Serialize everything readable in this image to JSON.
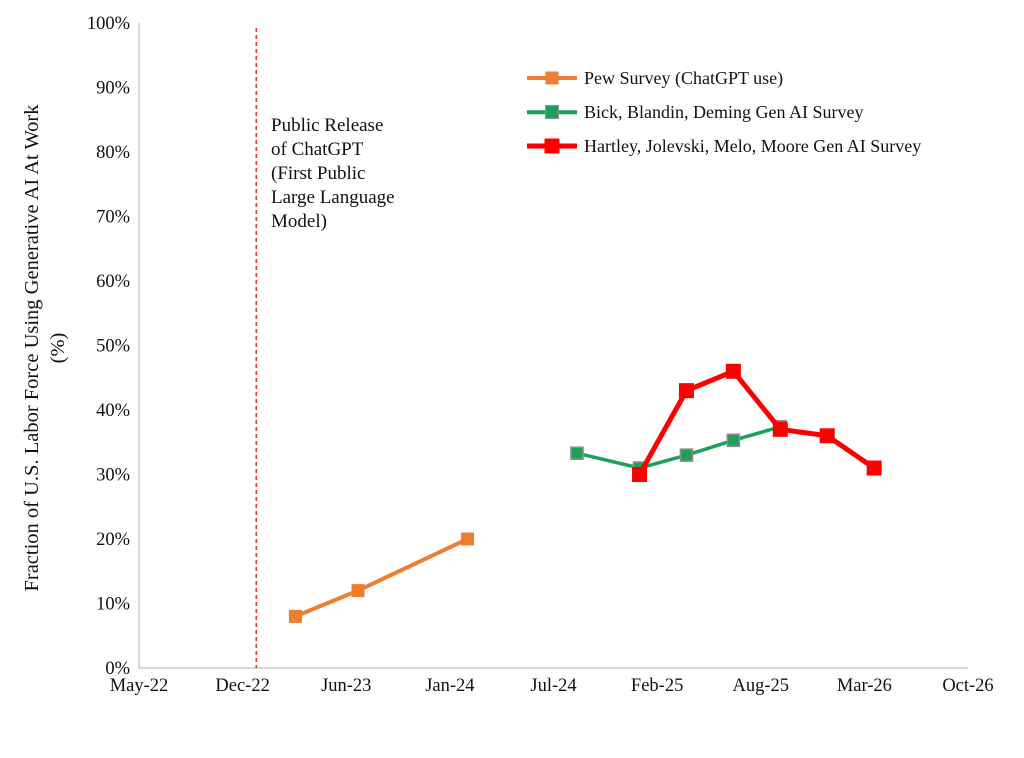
{
  "chart_data": {
    "type": "line",
    "title": "",
    "y_axis_title_line1": "Fraction of U.S. Labor Force Using Generative AI At Work",
    "y_axis_title_line2": "(%)",
    "xlabel": "",
    "x_unit": "month-year",
    "x_tick_labels": [
      "May-22",
      "Dec-22",
      "Jun-23",
      "Jan-24",
      "Jul-24",
      "Feb-25",
      "Aug-25",
      "Mar-26",
      "Oct-26"
    ],
    "y_tick_labels": [
      "0%",
      "10%",
      "20%",
      "30%",
      "40%",
      "50%",
      "60%",
      "70%",
      "80%",
      "90%",
      "100%"
    ],
    "ylim": [
      0,
      100
    ],
    "y_tick_step": 10,
    "x_range": [
      "May-22",
      "Oct-26"
    ],
    "months_total": 53,
    "grid": false,
    "legend_position": "upper center-right, no border",
    "annotation": {
      "text": "Public Release\nof ChatGPT\n(First Public\nLarge Language\nModel)",
      "event_month": "Dec-22"
    },
    "reference_line": {
      "label": "ChatGPT public release",
      "month": "Dec-22",
      "month_index": 7.5,
      "style": "dashed",
      "color": "#E3352B"
    },
    "axis_color": "#BFBFBF",
    "series": [
      {
        "name": "Pew Survey (ChatGPT use)",
        "color": "#ED7D31",
        "marker": "square",
        "points": [
          {
            "date": "Mar-23",
            "month_index": 10,
            "value": 8
          },
          {
            "date": "Jul-23",
            "month_index": 14,
            "value": 12
          },
          {
            "date": "Feb-24",
            "month_index": 21,
            "value": 20
          }
        ]
      },
      {
        "name": "Bick, Blandin, Deming Gen AI Survey",
        "color": "#1CA05A",
        "marker": "square",
        "marker_border": "#8F8F8F",
        "points": [
          {
            "date": "Sep-24",
            "month_index": 28,
            "value": 33.3
          },
          {
            "date": "Jan-25",
            "month_index": 32,
            "value": 31
          },
          {
            "date": "Apr-25",
            "month_index": 35,
            "value": 33
          },
          {
            "date": "Jul-25",
            "month_index": 38,
            "value": 35.3
          },
          {
            "date": "Oct-25",
            "month_index": 41,
            "value": 37.4
          }
        ]
      },
      {
        "name": "Hartley, Jolevski, Melo, Moore Gen AI Survey",
        "color": "#FB0000",
        "marker": "square",
        "points": [
          {
            "date": "Jan-25",
            "month_index": 32,
            "value": 30
          },
          {
            "date": "Apr-25",
            "month_index": 35,
            "value": 43
          },
          {
            "date": "Jul-25",
            "month_index": 38,
            "value": 46
          },
          {
            "date": "Oct-25",
            "month_index": 41,
            "value": 37
          },
          {
            "date": "Jan-26",
            "month_index": 44,
            "value": 36
          },
          {
            "date": "Apr-26",
            "month_index": 47,
            "value": 31
          }
        ]
      }
    ]
  }
}
